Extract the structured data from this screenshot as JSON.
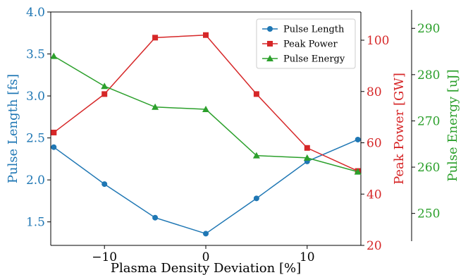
{
  "chart_data": {
    "type": "line",
    "x": [
      -15,
      -10,
      -5,
      0,
      5,
      10,
      15
    ],
    "xlabel": "Plasma Density Deviation [%]",
    "xlim": [
      -15.3,
      15.3
    ],
    "xticks": [
      -10,
      0,
      10
    ],
    "xtick_labels": [
      "−10",
      "0",
      "10"
    ],
    "axes": [
      {
        "id": "pulse_length",
        "label": "Pulse Length [fs]",
        "color": "#1f77b4",
        "ylim": [
          1.22,
          4.0
        ],
        "ticks": [
          1.5,
          2.0,
          2.5,
          3.0,
          3.5,
          4.0
        ],
        "tick_labels": [
          "1.5",
          "2.0",
          "2.5",
          "3.0",
          "3.5",
          "4.0"
        ]
      },
      {
        "id": "peak_power",
        "label": "Peak Power [GW]",
        "color": "#d62728",
        "ylim": [
          20,
          111
        ],
        "ticks": [
          20,
          40,
          60,
          80,
          100
        ],
        "tick_labels": [
          "20",
          "40",
          "60",
          "80",
          "100"
        ]
      },
      {
        "id": "pulse_energy",
        "label": "Pulse Energy [uJ]",
        "color": "#2ca02c",
        "ylim": [
          244,
          294
        ],
        "ticks": [
          250,
          260,
          270,
          280,
          290
        ],
        "tick_labels": [
          "250",
          "260",
          "270",
          "280",
          "290"
        ]
      }
    ],
    "series": [
      {
        "name": "Pulse Length",
        "axis": "pulse_length",
        "marker": "circle",
        "color": "#1f77b4",
        "values": [
          2.39,
          1.95,
          1.55,
          1.36,
          1.78,
          2.22,
          2.48
        ]
      },
      {
        "name": "Peak Power",
        "axis": "peak_power",
        "marker": "square",
        "color": "#d62728",
        "values": [
          64,
          79,
          101,
          102,
          79,
          58,
          49
        ]
      },
      {
        "name": "Pulse Energy",
        "axis": "pulse_energy",
        "marker": "triangle",
        "color": "#2ca02c",
        "values": [
          284,
          277.5,
          273,
          272.5,
          262.5,
          262,
          259
        ]
      }
    ],
    "legend": "top-right",
    "grid": false
  }
}
